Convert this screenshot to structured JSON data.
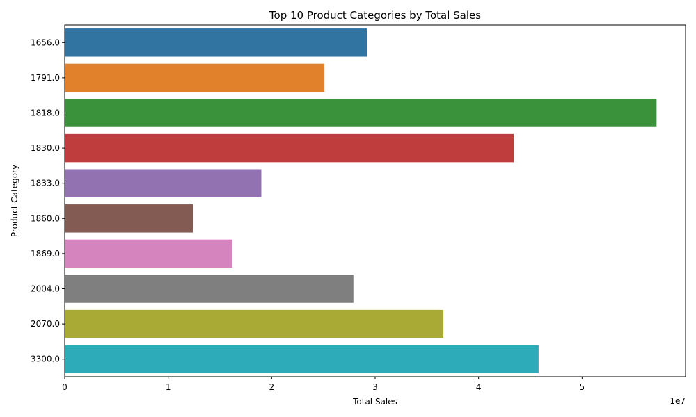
{
  "chart_data": {
    "type": "bar",
    "orientation": "horizontal",
    "title": "Top 10 Product Categories by Total Sales",
    "xlabel": "Total Sales",
    "ylabel": "Product Category",
    "x_scale_label": "1e7",
    "xlim": [
      0,
      6.0
    ],
    "x_ticks": [
      0,
      1,
      2,
      3,
      4,
      5
    ],
    "x_tick_labels": [
      "0",
      "1",
      "2",
      "3",
      "4",
      "5"
    ],
    "value_multiplier": 10000000,
    "categories": [
      "1656.0",
      "1791.0",
      "1818.0",
      "1830.0",
      "1833.0",
      "1860.0",
      "1869.0",
      "2004.0",
      "2070.0",
      "3300.0"
    ],
    "values": [
      29200000,
      25100000,
      57200000,
      43400000,
      19000000,
      12400000,
      16200000,
      27900000,
      36600000,
      45800000
    ],
    "colors": [
      "#3274a1",
      "#e1812c",
      "#3a923a",
      "#c03d3e",
      "#9372b2",
      "#845b53",
      "#d684bd",
      "#7f7f7f",
      "#a9aa35",
      "#2eabb8"
    ],
    "grid": false,
    "legend": "none"
  }
}
